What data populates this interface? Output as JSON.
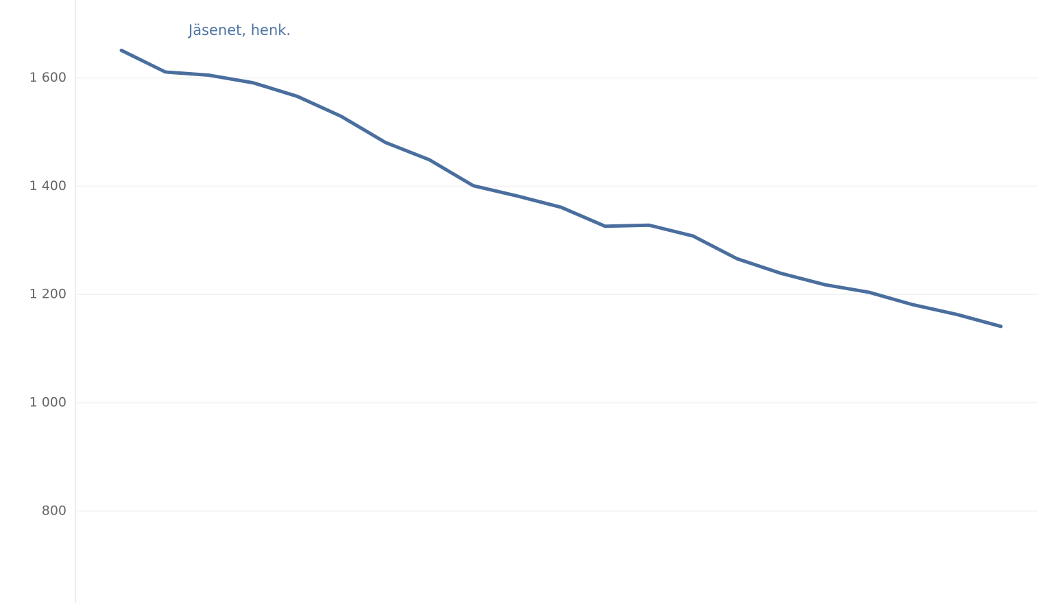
{
  "chart_data": {
    "type": "line",
    "title": "Jäsenet, henk.",
    "categories": [
      null,
      null,
      null,
      null,
      null,
      null,
      null,
      null,
      null,
      null,
      null,
      null,
      null,
      null,
      null,
      null,
      null,
      null,
      null,
      null,
      null
    ],
    "series": [
      {
        "color": "#4a6e9e",
        "values": [
          1651,
          1611,
          1605,
          1591,
          1566,
          1529,
          1481,
          1449,
          1401,
          1382,
          1361,
          1326,
          1328,
          1308,
          1266,
          1239,
          1218,
          1204,
          1181,
          1163,
          1141
        ]
      }
    ],
    "ylim": [
      630,
      1744
    ],
    "yticks": [
      800,
      {
        "value": 1000,
        "label": "1 000"
      },
      {
        "value": 1200,
        "label": "1 200"
      },
      {
        "value": 1400,
        "label": "1 400"
      },
      {
        "value": 1600,
        "label": "1 600"
      }
    ],
    "grid": true
  }
}
